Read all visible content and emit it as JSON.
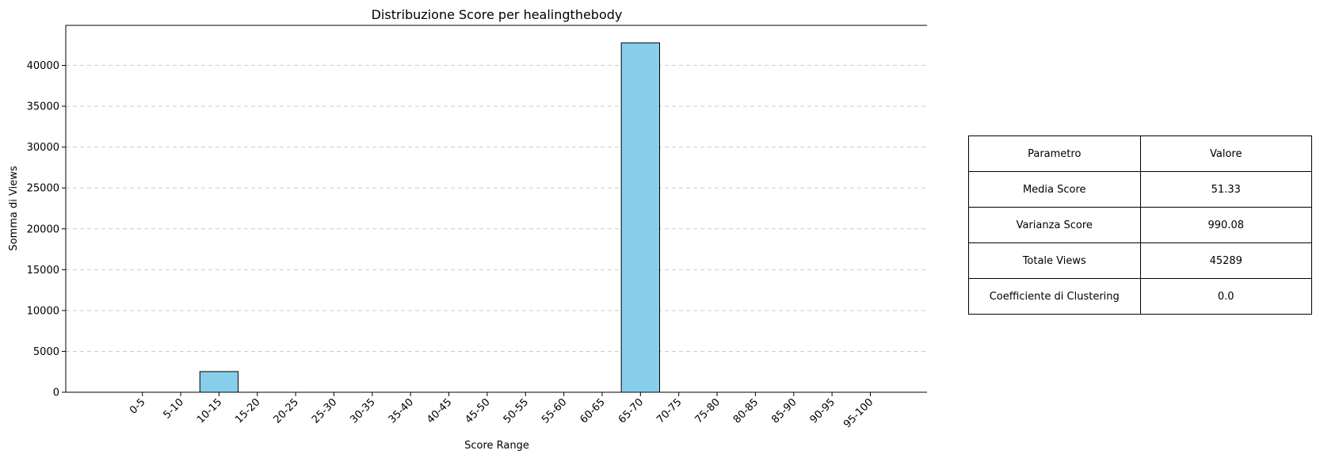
{
  "chart_data": {
    "type": "bar",
    "title": "Distribuzione Score per healingthebody",
    "xlabel": "Score Range",
    "ylabel": "Somma di Views",
    "categories": [
      "0-5",
      "5-10",
      "10-15",
      "15-20",
      "20-25",
      "25-30",
      "30-35",
      "35-40",
      "40-45",
      "45-50",
      "50-55",
      "55-60",
      "60-65",
      "65-70",
      "70-75",
      "75-80",
      "80-85",
      "85-90",
      "90-95",
      "95-100"
    ],
    "values": [
      0,
      0,
      2530,
      0,
      0,
      0,
      0,
      0,
      0,
      0,
      0,
      0,
      0,
      42759,
      0,
      0,
      0,
      0,
      0,
      0
    ],
    "ylim": [
      0,
      44900
    ],
    "yticks": [
      0,
      5000,
      10000,
      15000,
      20000,
      25000,
      30000,
      35000,
      40000
    ],
    "ytick_labels": [
      "0",
      "5000",
      "10000",
      "15000",
      "20000",
      "25000",
      "30000",
      "35000",
      "40000"
    ],
    "grid": "y",
    "bar_color": "#87CEEB",
    "edge_color": "#000000",
    "grid_color": "#cccccc"
  },
  "stats_table": {
    "header": [
      "Parametro",
      "Valore"
    ],
    "rows": [
      [
        "Media Score",
        "51.33"
      ],
      [
        "Varianza Score",
        "990.08"
      ],
      [
        "Totale Views",
        "45289"
      ],
      [
        "Coefficiente di Clustering",
        "0.0"
      ]
    ]
  }
}
